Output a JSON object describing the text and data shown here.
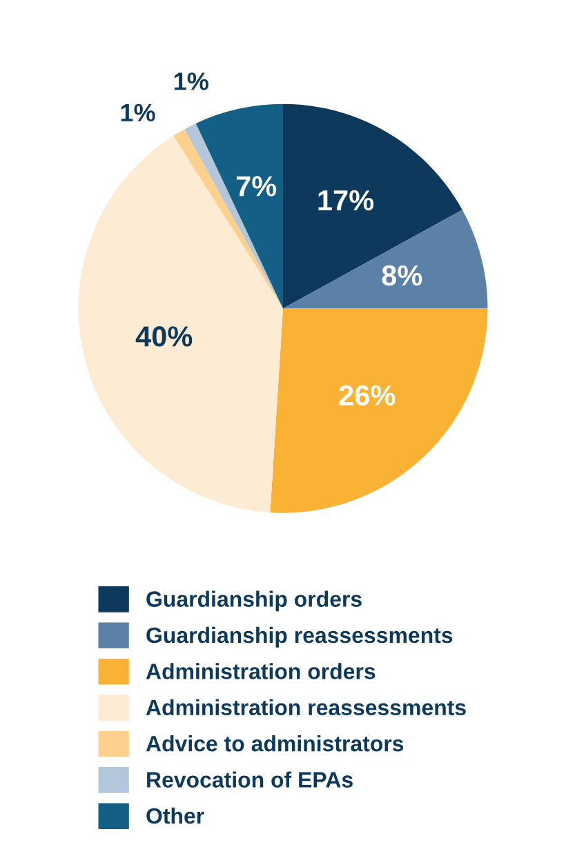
{
  "chart_data": {
    "type": "pie",
    "categories": [
      "Guardianship orders",
      "Guardianship reassessments",
      "Administration orders",
      "Administration reassessments",
      "Advice to administrators",
      "Revocation of EPAs",
      "Other"
    ],
    "values": [
      17,
      8,
      26,
      40,
      1,
      1,
      7
    ],
    "colors": [
      "#0d3a5c",
      "#5b82a6",
      "#f9b233",
      "#fdebd3",
      "#fdd08e",
      "#b4c6da",
      "#145f86"
    ],
    "value_labels": [
      "17%",
      "8%",
      "26%",
      "40%",
      "1%",
      "1%",
      "7%"
    ],
    "legend": "bottom"
  }
}
